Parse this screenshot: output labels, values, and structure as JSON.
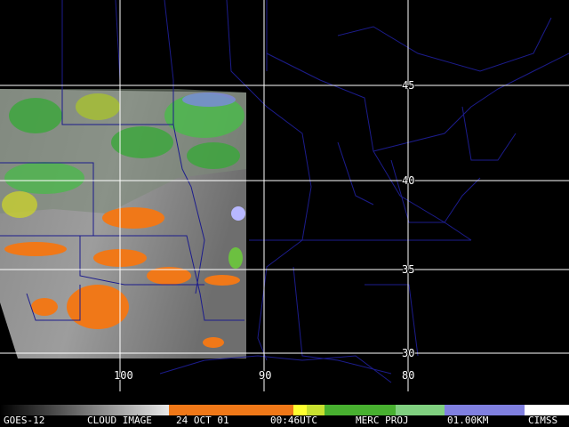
{
  "map": {
    "latitude_labels": [
      "45",
      "40",
      "35",
      "30"
    ],
    "longitude_labels": [
      "100",
      "90",
      "80"
    ]
  },
  "footer": {
    "satellite": "GOES-12",
    "product": "CLOUD IMAGE",
    "date": "24 OCT 01",
    "time": "00:46UTC",
    "projection": "MERC PROJ",
    "resolution": "01.00KM",
    "source": "CIMSS"
  }
}
